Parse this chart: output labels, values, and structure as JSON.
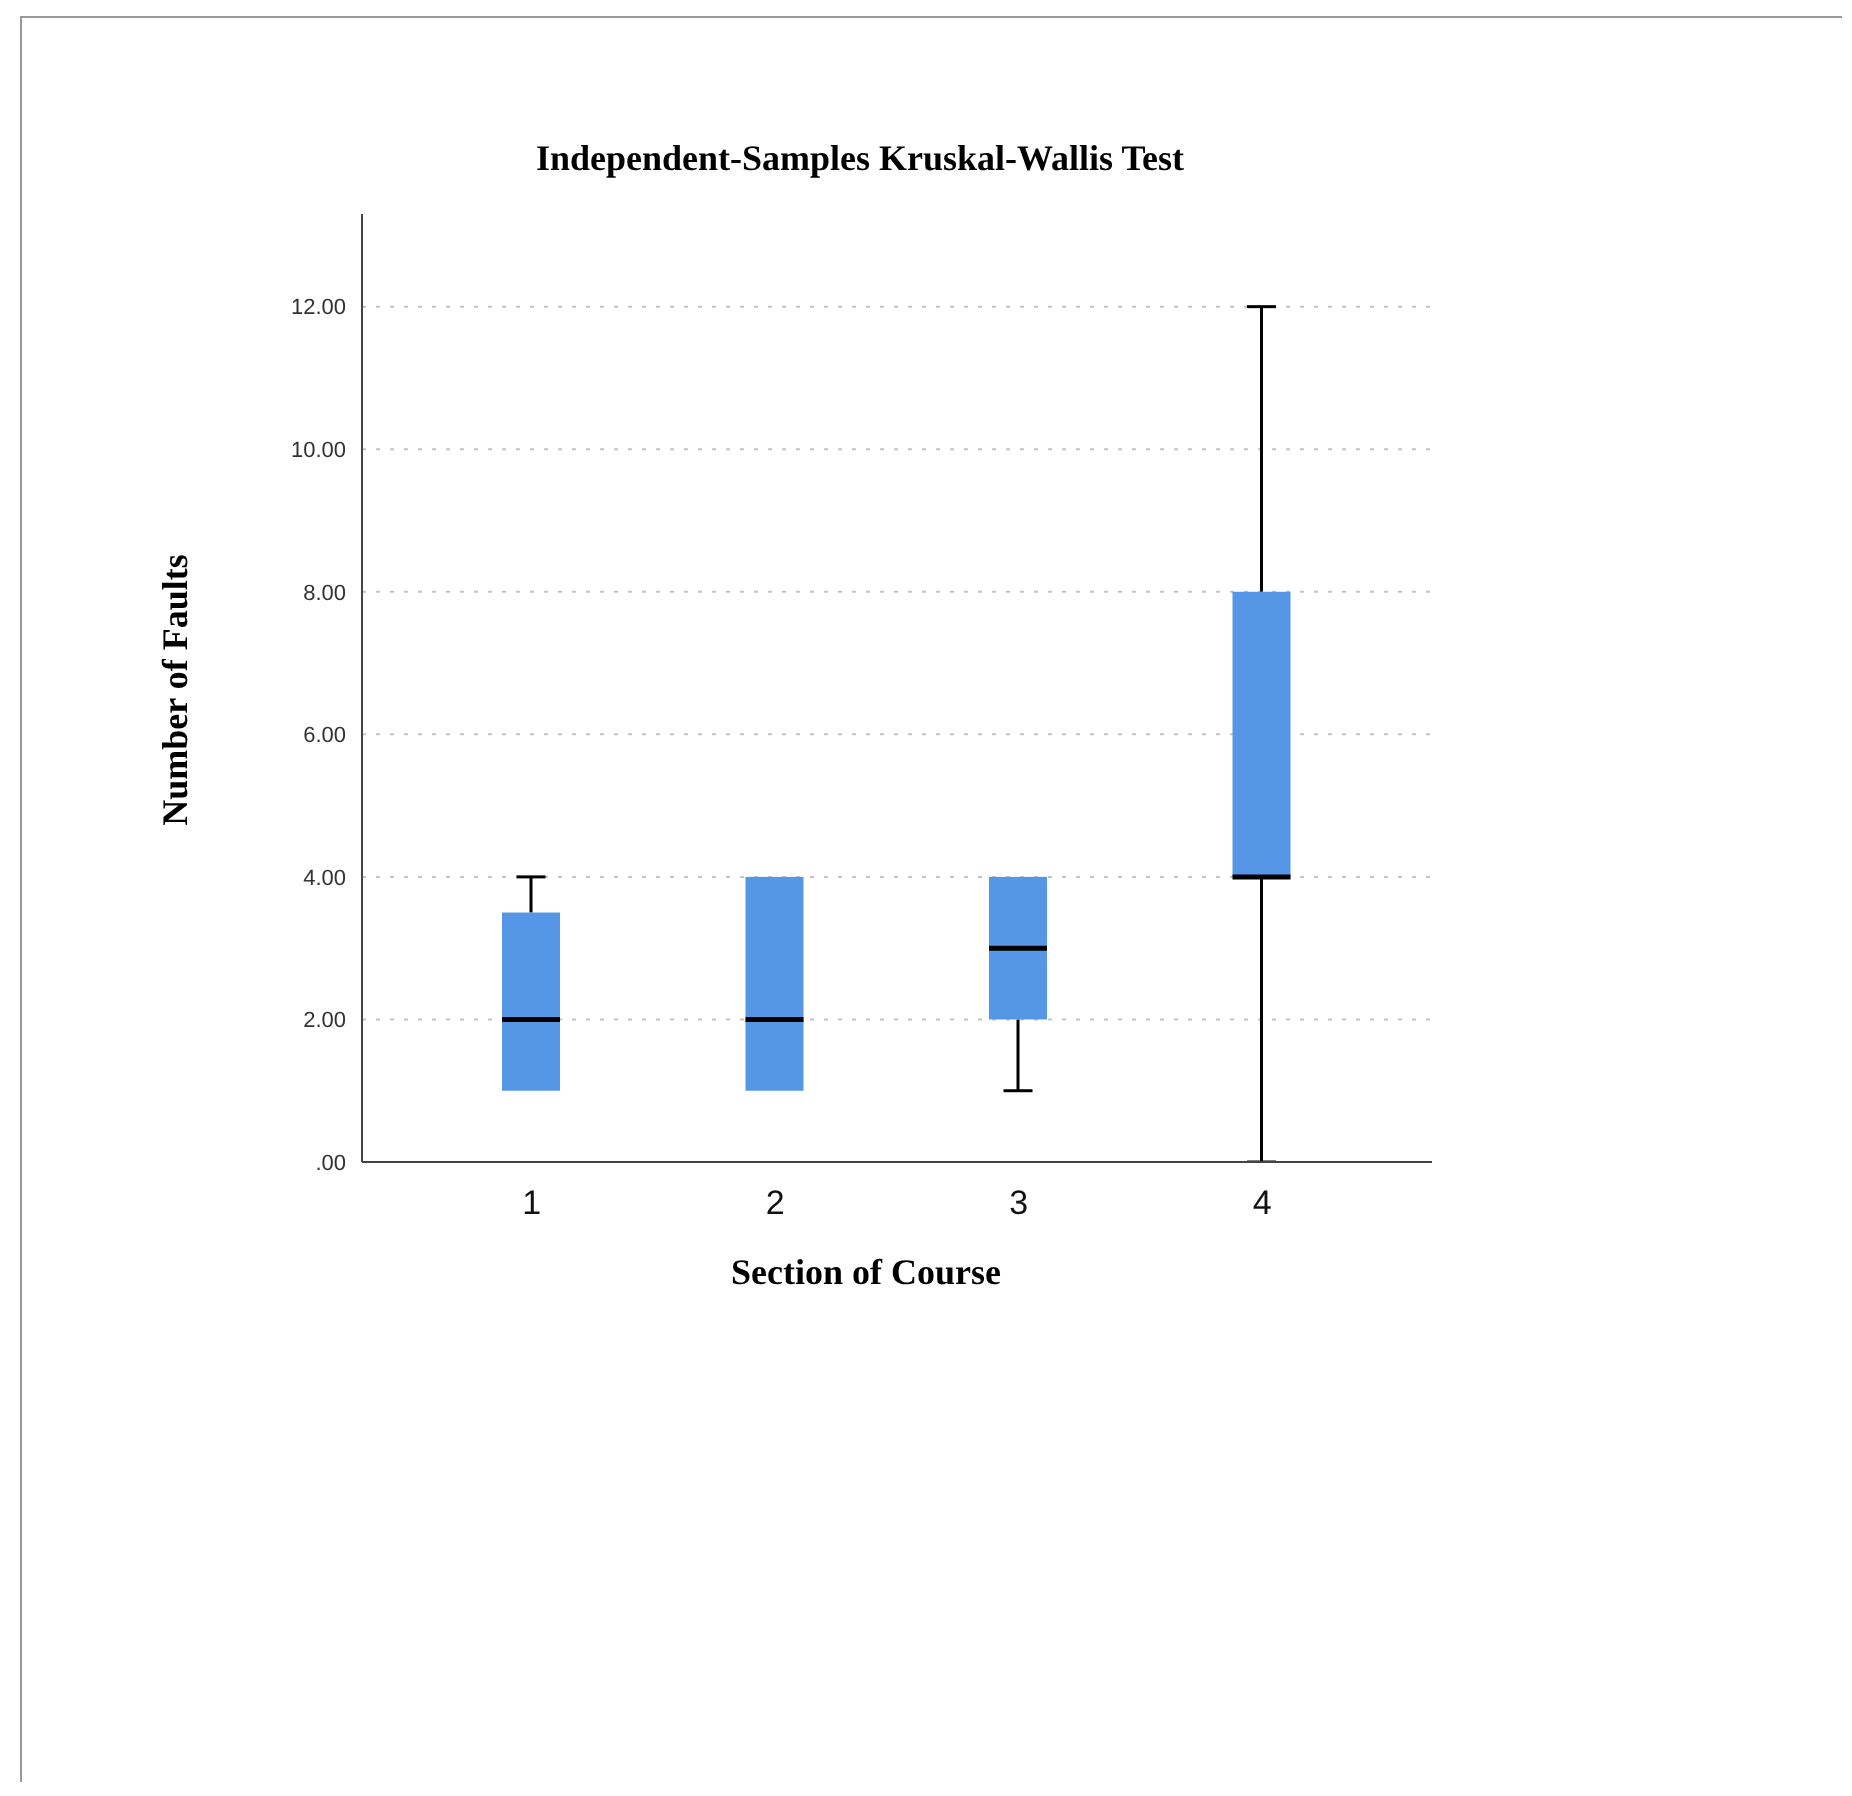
{
  "chart_data": {
    "type": "box",
    "title": "Independent-Samples Kruskal-Wallis Test",
    "xlabel": "Section of Course",
    "ylabel": "Number of Faults",
    "categories": [
      "1",
      "2",
      "3",
      "4"
    ],
    "color": "#5596e6",
    "boxes": [
      {
        "low": 1,
        "q1": 1,
        "median": 2,
        "q3": 3.5,
        "high": 4
      },
      {
        "low": 1,
        "q1": 1,
        "median": 2,
        "q3": 4,
        "high": 4
      },
      {
        "low": 1,
        "q1": 2,
        "median": 3,
        "q3": 4,
        "high": 4
      },
      {
        "low": 0,
        "q1": 4,
        "median": 4,
        "q3": 8,
        "high": 12
      }
    ],
    "ylim": [
      0,
      13.3
    ],
    "yticks": [
      {
        "value": 0,
        "label": ".00"
      },
      {
        "value": 2,
        "label": "2.00"
      },
      {
        "value": 4,
        "label": "4.00"
      },
      {
        "value": 6,
        "label": "6.00"
      },
      {
        "value": 8,
        "label": "8.00"
      },
      {
        "value": 10,
        "label": "10.00"
      },
      {
        "value": 12,
        "label": "12.00"
      }
    ],
    "grid": "y"
  }
}
